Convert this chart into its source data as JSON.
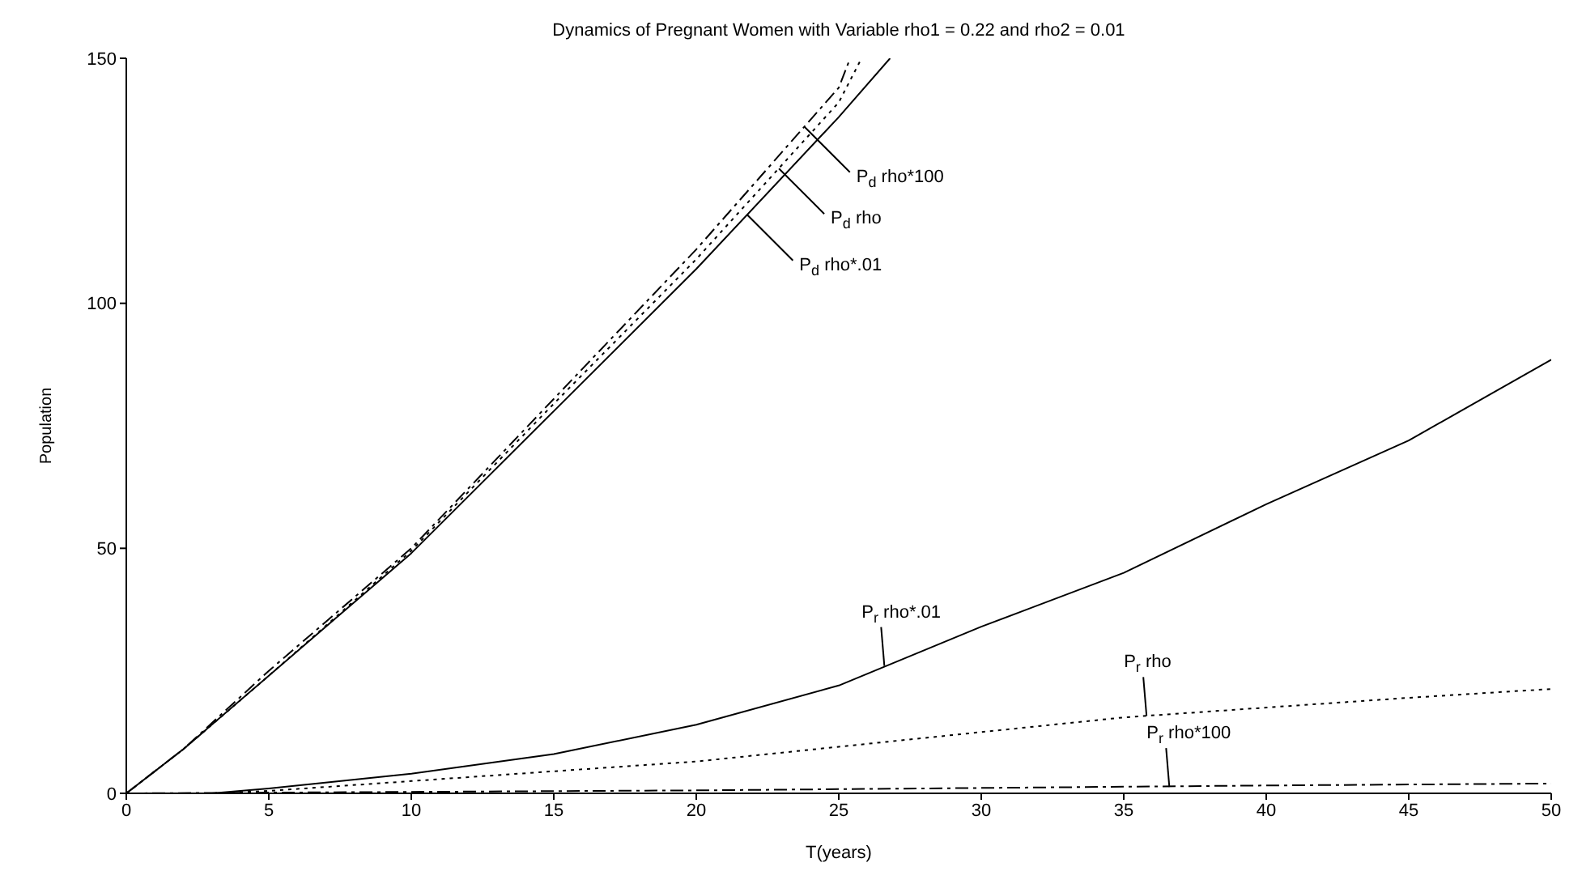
{
  "chart_data": {
    "type": "line",
    "title": "Dynamics of Pregnant Women with Variable rho1 = 0.22 and rho2 = 0.01",
    "xlabel": "T(years)",
    "ylabel": "Population",
    "xlim": [
      0,
      50
    ],
    "xticks": [
      0,
      5,
      10,
      15,
      20,
      25,
      30,
      35,
      40,
      45,
      50
    ],
    "ylim": [
      0,
      150
    ],
    "yticks": [
      0,
      50,
      100,
      150
    ],
    "marker": "none",
    "series": [
      {
        "color": "#000000",
        "line_style": "solid",
        "x": [
          0,
          2,
          5,
          10,
          15,
          20,
          25,
          26.8
        ],
        "values": [
          0,
          9,
          24,
          49,
          78,
          107,
          138,
          150
        ]
      },
      {
        "color": "#000000",
        "line_style": "dotted",
        "x": [
          0,
          2,
          5,
          10,
          15,
          20,
          25,
          25.8
        ],
        "values": [
          0,
          9,
          24,
          49.5,
          79.5,
          109,
          141,
          150
        ]
      },
      {
        "color": "#000000",
        "line_style": "dashdot",
        "x": [
          0,
          2,
          5,
          10,
          15,
          20,
          25,
          25.4
        ],
        "values": [
          0,
          9,
          25,
          50,
          80.5,
          111,
          144,
          150
        ]
      },
      {
        "color": "#000000",
        "line_style": "solid",
        "x": [
          0,
          3,
          5,
          10,
          15,
          20,
          25,
          30,
          35,
          40,
          45,
          50
        ],
        "values": [
          0,
          0,
          1,
          4,
          8,
          14,
          22,
          34,
          45,
          59,
          72,
          88.5
        ]
      },
      {
        "color": "#000000",
        "line_style": "dotted",
        "x": [
          0,
          3,
          5,
          10,
          15,
          20,
          25,
          30,
          35,
          40,
          45,
          50
        ],
        "values": [
          0,
          0,
          0.5,
          2.5,
          4.5,
          6.5,
          9.5,
          12.5,
          15.5,
          17.5,
          19.5,
          21.3
        ]
      },
      {
        "color": "#000000",
        "line_style": "dashdot",
        "x": [
          0,
          10,
          20,
          30,
          40,
          50
        ],
        "values": [
          0,
          0.3,
          0.6,
          1.1,
          1.6,
          2
        ]
      }
    ],
    "annotations": [
      {
        "text": "P$_{d}$ rho*100",
        "x": 23.8,
        "y": 136
      },
      {
        "text": "P$_{d}$ rho",
        "x": 22.9,
        "y": 127.5
      },
      {
        "text": "P$_{d}$ rho*.01",
        "x": 21.8,
        "y": 118
      },
      {
        "text": "P$_{r}$ rho*.01",
        "x": 26.6,
        "y": 26
      },
      {
        "text": "P$_{r}$ rho",
        "x": 35.8,
        "y": 15.8
      },
      {
        "text": "P$_{r}$ rho*100",
        "x": 36.6,
        "y": 1.3
      }
    ]
  }
}
